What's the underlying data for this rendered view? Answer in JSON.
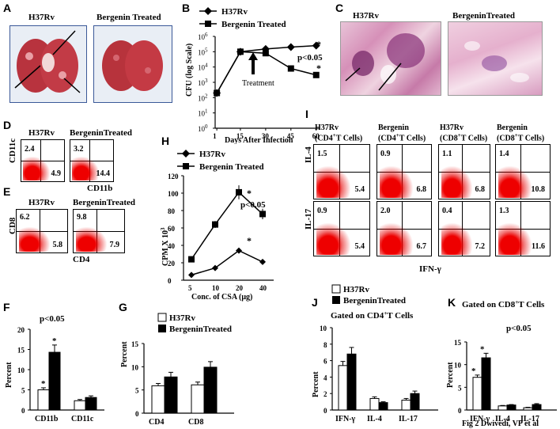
{
  "panels": {
    "A": {
      "letter": "A",
      "left": "H37Rv",
      "right": "Bergenin Treated"
    },
    "B": {
      "letter": "B",
      "legend": [
        "H37Rv",
        "Bergenin Treated"
      ],
      "ylabel": "CFU (log Scale)",
      "xlabel": "Days After Infection",
      "annotation": "Treatment",
      "pval": "p<0.05",
      "star": "*"
    },
    "C": {
      "letter": "C",
      "left": "H37Rv",
      "right": "BergeninTreated"
    },
    "D": {
      "letter": "D",
      "left": "H37Rv",
      "right": "BergeninTreated",
      "ylabel": "CD11c",
      "xlabel": "CD11b",
      "q1": [
        "2.4",
        "4.9"
      ],
      "q2": [
        "3.2",
        "14.4"
      ]
    },
    "E": {
      "letter": "E",
      "left": "H37Rv",
      "right": "BergeninTreated",
      "ylabel": "CD8",
      "xlabel": "CD4",
      "q1": [
        "6.2",
        "5.8"
      ],
      "q2": [
        "9.8",
        "7.9"
      ]
    },
    "F": {
      "letter": "F",
      "ylabel": "Percent",
      "pval": "p<0.05",
      "star": "*"
    },
    "G": {
      "letter": "G",
      "ylabel": "Percent",
      "legend": [
        "H37Rv",
        "BergeninTreated"
      ]
    },
    "H": {
      "letter": "H",
      "legend": [
        "H37Rv",
        "Bergenin Treated"
      ],
      "ylabel": "CPM X 10",
      "ylabel_sup": "3",
      "xlabel": "Conc. of CSA (μg)",
      "pval": "p<0.05",
      "star": "*"
    },
    "I": {
      "letter": "I",
      "cols": [
        {
          "l1": "H37Rv",
          "l2": "(CD4",
          "sup": "+",
          "l3": "T Cells)"
        },
        {
          "l1": "Bergenin",
          "l2": "(CD4",
          "sup": "+",
          "l3": "T Cells)"
        },
        {
          "l1": "H37Rv",
          "l2": "(CD8",
          "sup": "+",
          "l3": "T Cells)"
        },
        {
          "l1": "Bergenin",
          "l2": "(CD8",
          "sup": "+",
          "l3": "T Cells)"
        }
      ],
      "row1": "IL-4",
      "row2": "IL-17",
      "xlabel": "IFN-γ",
      "r1": [
        [
          "1.5",
          "5.4"
        ],
        [
          "0.9",
          "6.8"
        ],
        [
          "1.1",
          "6.8"
        ],
        [
          "1.4",
          "10.8"
        ]
      ],
      "r2": [
        [
          "0.9",
          "5.4"
        ],
        [
          "2.0",
          "6.7"
        ],
        [
          "0.4",
          "7.2"
        ],
        [
          "1.3",
          "11.6"
        ]
      ]
    },
    "J": {
      "letter": "J",
      "legend": [
        "H37Rv",
        "BergeninTreated"
      ],
      "title": "Gated on  CD4",
      "title_sup": "+",
      "title_end": "T Cells",
      "ylabel": "Percent"
    },
    "K": {
      "letter": "K",
      "title": "Gated on  CD8",
      "title_sup": "+",
      "title_end": "T Cells",
      "pval": "p<0.05",
      "ylabel": "Percent",
      "star": "*",
      "footer": "Fig 2 Dwivedi, VP et al"
    }
  },
  "chart_data": [
    {
      "panel": "B",
      "type": "line",
      "title": "",
      "xlabel": "Days After Infection",
      "ylabel": "CFU (log Scale)",
      "yscale": "log",
      "x": [
        1,
        15,
        30,
        45,
        60
      ],
      "xticks": [
        "1",
        "15",
        "30",
        "45",
        "60"
      ],
      "yticks": [
        "10^0",
        "10^1",
        "10^2",
        "10^3",
        "10^4",
        "10^5",
        "10^6"
      ],
      "ylim": [
        1,
        1000000
      ],
      "series": [
        {
          "name": "H37Rv",
          "marker": "diamond",
          "values": [
            200,
            100000,
            150000,
            200000,
            250000
          ]
        },
        {
          "name": "Bergenin Treated",
          "marker": "square",
          "values": [
            200,
            100000,
            80000,
            8000,
            3000
          ]
        }
      ]
    },
    {
      "panel": "F",
      "type": "bar",
      "title": "",
      "xlabel": "",
      "ylabel": "Percent",
      "categories": [
        "CD11b",
        "CD11c"
      ],
      "ylim": [
        0,
        20
      ],
      "yticks": [
        0,
        5,
        10,
        15,
        20
      ],
      "series": [
        {
          "name": "H37Rv",
          "color": "#ffffff",
          "values": [
            5,
            2.3
          ],
          "errors": [
            0.5,
            0.3
          ]
        },
        {
          "name": "BergeninTreated",
          "color": "#000000",
          "values": [
            14.3,
            3.1
          ],
          "errors": [
            1.8,
            0.4
          ]
        }
      ]
    },
    {
      "panel": "G",
      "type": "bar",
      "title": "",
      "xlabel": "",
      "ylabel": "Percent",
      "categories": [
        "CD4",
        "CD8"
      ],
      "ylim": [
        0,
        15
      ],
      "yticks": [
        0,
        5,
        10,
        15
      ],
      "series": [
        {
          "name": "H37Rv",
          "color": "#ffffff",
          "values": [
            5.9,
            6.1
          ],
          "errors": [
            0.5,
            0.6
          ]
        },
        {
          "name": "BergeninTreated",
          "color": "#000000",
          "values": [
            7.8,
            9.9
          ],
          "errors": [
            1,
            1.2
          ]
        }
      ]
    },
    {
      "panel": "H",
      "type": "line",
      "title": "",
      "xlabel": "Conc. of CSA (μg)",
      "ylabel": "CPM X 10^3",
      "x": [
        5,
        10,
        20,
        40
      ],
      "xticks": [
        "5",
        "10",
        "20",
        "40"
      ],
      "ylim": [
        0,
        120
      ],
      "yticks": [
        0,
        20,
        40,
        60,
        80,
        100,
        120
      ],
      "series": [
        {
          "name": "H37Rv",
          "marker": "diamond",
          "values": [
            6,
            14,
            34,
            21
          ],
          "errors": [
            0,
            0,
            3,
            0
          ]
        },
        {
          "name": "Bergenin Treated",
          "marker": "square",
          "values": [
            24,
            64,
            101,
            76
          ],
          "errors": [
            0,
            4,
            8,
            6
          ]
        }
      ]
    },
    {
      "panel": "J",
      "type": "bar",
      "title": "",
      "xlabel": "",
      "ylabel": "Percent",
      "categories": [
        "IFN-γ",
        "IL-4",
        "IL-17"
      ],
      "ylim": [
        0,
        10
      ],
      "yticks": [
        0,
        2,
        4,
        6,
        8,
        10
      ],
      "series": [
        {
          "name": "H37Rv",
          "color": "#ffffff",
          "values": [
            5.4,
            1.4,
            1.2
          ],
          "errors": [
            0.5,
            0.2,
            0.2
          ]
        },
        {
          "name": "BergeninTreated",
          "color": "#000000",
          "values": [
            6.8,
            0.9,
            2
          ],
          "errors": [
            0.8,
            0.1,
            0.3
          ]
        }
      ]
    },
    {
      "panel": "K",
      "type": "bar",
      "title": "",
      "xlabel": "",
      "ylabel": "Percent",
      "categories": [
        "IFN-γ",
        "IL-4",
        "IL-17"
      ],
      "ylim": [
        0,
        15
      ],
      "yticks": [
        0,
        5,
        10,
        15
      ],
      "series": [
        {
          "name": "H37Rv",
          "color": "#ffffff",
          "values": [
            7.2,
            0.9,
            0.5
          ],
          "errors": [
            0.5,
            0.1,
            0.1
          ]
        },
        {
          "name": "BergeninTreated",
          "color": "#000000",
          "values": [
            11.5,
            1.1,
            1.2
          ],
          "errors": [
            1,
            0.1,
            0.2
          ]
        }
      ]
    }
  ]
}
